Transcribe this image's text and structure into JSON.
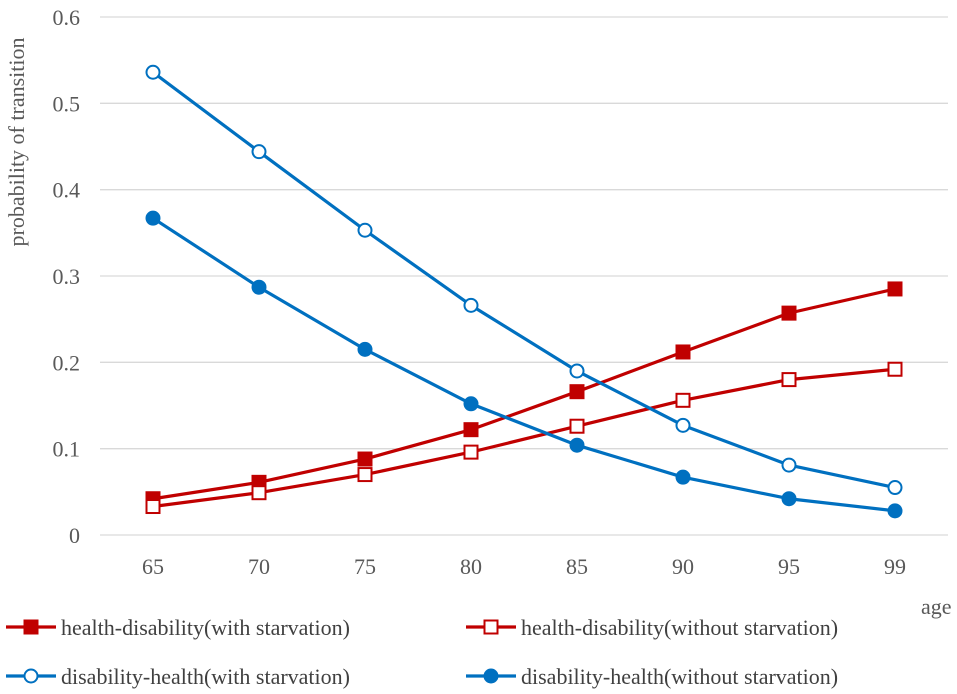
{
  "chart_data": {
    "type": "line",
    "title": "",
    "xlabel": "age",
    "ylabel": "probability of transition",
    "categories": [
      "65",
      "70",
      "75",
      "80",
      "85",
      "90",
      "95",
      "99"
    ],
    "ylim": [
      0,
      0.6
    ],
    "yticks": [
      0,
      0.1,
      0.2,
      0.3,
      0.4,
      0.5,
      0.6
    ],
    "ytick_labels": [
      "0",
      "0.1",
      "0.2",
      "0.3",
      "0.4",
      "0.5",
      "0.6"
    ],
    "grid": "horizontal",
    "legend_position": "bottom",
    "series": [
      {
        "name": "health-disability(with starvation)",
        "color": "#C00000",
        "marker": "square",
        "filled": true,
        "values": [
          0.042,
          0.061,
          0.088,
          0.122,
          0.166,
          0.212,
          0.257,
          0.285
        ]
      },
      {
        "name": "health-disability(without starvation)",
        "color": "#C00000",
        "marker": "square",
        "filled": false,
        "values": [
          0.033,
          0.049,
          0.07,
          0.096,
          0.126,
          0.156,
          0.18,
          0.192
        ]
      },
      {
        "name": "disability-health(with starvation)",
        "color": "#0070C0",
        "marker": "circle",
        "filled": false,
        "values": [
          0.536,
          0.444,
          0.353,
          0.266,
          0.19,
          0.127,
          0.081,
          0.055
        ]
      },
      {
        "name": "disability-health(without starvation)",
        "color": "#0070C0",
        "marker": "circle",
        "filled": true,
        "values": [
          0.367,
          0.287,
          0.215,
          0.152,
          0.104,
          0.067,
          0.042,
          0.028
        ]
      }
    ]
  }
}
